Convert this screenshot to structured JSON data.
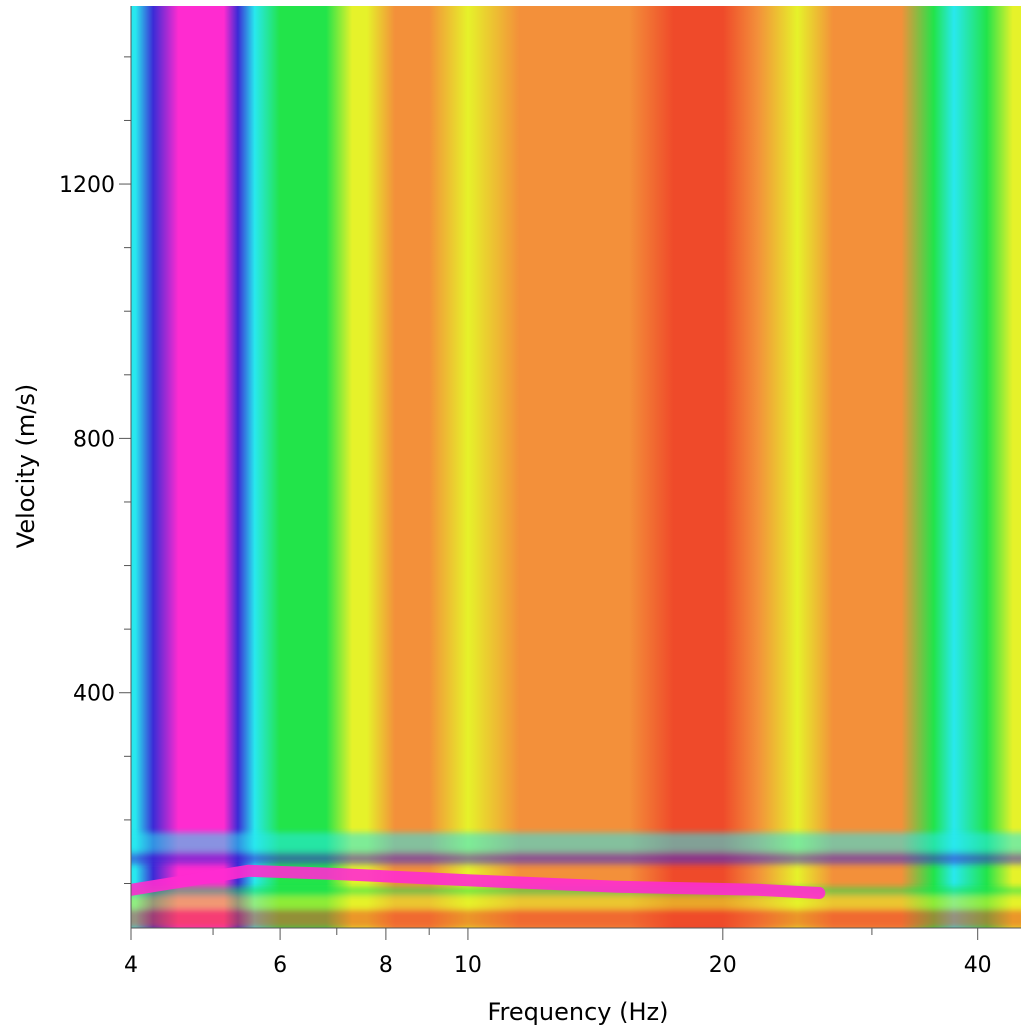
{
  "chart_data": {
    "type": "heatmap",
    "title": "",
    "xlabel": "Frequency (Hz)",
    "ylabel": "Velocity (m/s)",
    "x_scale": "log",
    "xlim": [
      4,
      45
    ],
    "ylim": [
      30,
      1480
    ],
    "x_ticks": [
      4,
      6,
      8,
      10,
      20,
      40
    ],
    "x_minor_ticks": [
      5,
      7,
      9,
      30
    ],
    "y_ticks": [
      400,
      800,
      1200
    ],
    "y_minor_step": 100,
    "colormap": [
      "#ff2bd0",
      "#3b2bd6",
      "#28e8ee",
      "#22e44a",
      "#e6f22a",
      "#f3903a",
      "#ef4a2a"
    ],
    "bands": [
      {
        "f": 4.05,
        "level": 0.3
      },
      {
        "f": 4.25,
        "level": 0.15
      },
      {
        "f": 4.55,
        "level": 0.02
      },
      {
        "f": 4.85,
        "level": 0.0
      },
      {
        "f": 5.15,
        "level": 0.02
      },
      {
        "f": 5.35,
        "level": 0.12
      },
      {
        "f": 5.6,
        "level": 0.4
      },
      {
        "f": 6.0,
        "level": 0.48
      },
      {
        "f": 6.4,
        "level": 0.5
      },
      {
        "f": 6.8,
        "level": 0.56
      },
      {
        "f": 7.3,
        "level": 0.66
      },
      {
        "f": 7.6,
        "level": 0.7
      },
      {
        "f": 8.2,
        "level": 0.82
      },
      {
        "f": 9.0,
        "level": 0.78
      },
      {
        "f": 10.0,
        "level": 0.68
      },
      {
        "f": 11.5,
        "level": 0.76
      },
      {
        "f": 13.5,
        "level": 0.88
      },
      {
        "f": 15.5,
        "level": 0.85
      },
      {
        "f": 17.5,
        "level": 0.97
      },
      {
        "f": 20.0,
        "level": 0.97
      },
      {
        "f": 22.0,
        "level": 0.86
      },
      {
        "f": 24.5,
        "level": 0.72
      },
      {
        "f": 27.0,
        "level": 0.8
      },
      {
        "f": 30.0,
        "level": 0.9
      },
      {
        "f": 32.5,
        "level": 0.8
      },
      {
        "f": 35.5,
        "level": 0.5
      },
      {
        "f": 37.5,
        "level": 0.4
      },
      {
        "f": 41.0,
        "level": 0.55
      },
      {
        "f": 44.0,
        "level": 0.7
      }
    ],
    "dispersion_curve": [
      {
        "f": 4.0,
        "v": 90
      },
      {
        "f": 5.5,
        "v": 120
      },
      {
        "f": 7.0,
        "v": 115
      },
      {
        "f": 10.0,
        "v": 105
      },
      {
        "f": 15.0,
        "v": 95
      },
      {
        "f": 22.0,
        "v": 90
      },
      {
        "f": 26.0,
        "v": 85
      }
    ]
  }
}
